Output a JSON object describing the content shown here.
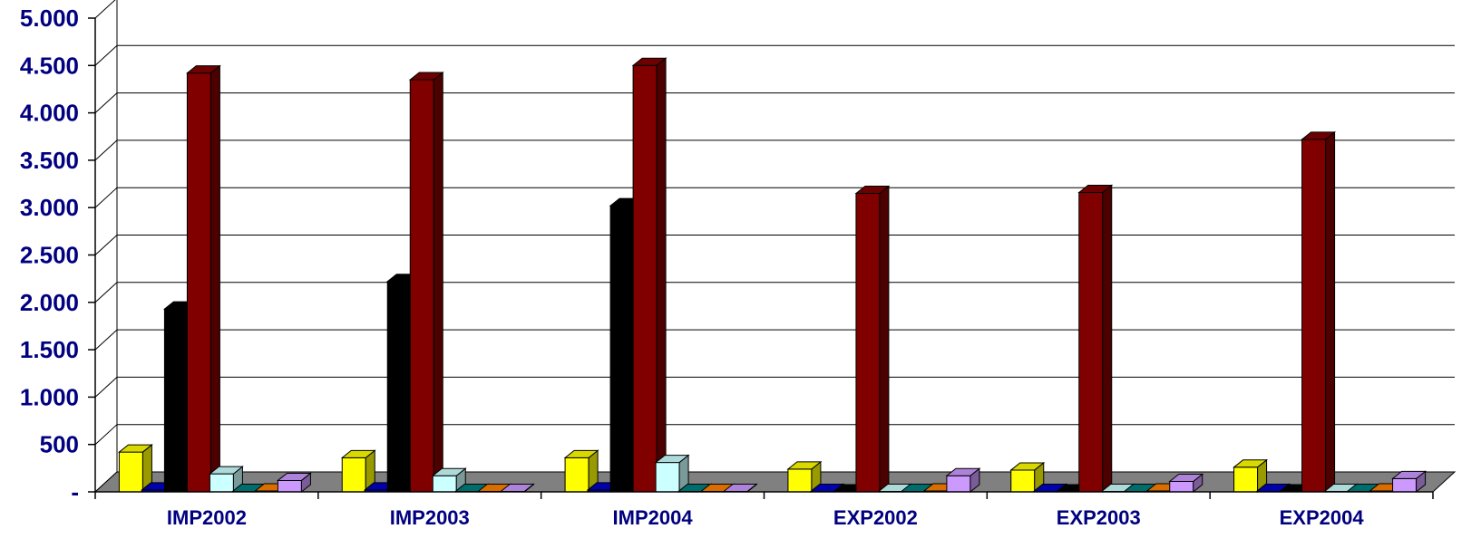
{
  "chart_data": {
    "type": "bar",
    "variant": "3d-clustered-column",
    "title": "",
    "xlabel": "",
    "ylabel": "",
    "categories": [
      "IMP2002",
      "IMP2003",
      "IMP2004",
      "EXP2002",
      "EXP2003",
      "EXP2004"
    ],
    "y_tick_labels": [
      "-",
      "500",
      "1.000",
      "1.500",
      "2.000",
      "2.500",
      "3.000",
      "3.500",
      "4.000",
      "4.500",
      "5.000"
    ],
    "ylim": [
      0,
      5000
    ],
    "grid": true,
    "legend": "none",
    "series": [
      {
        "color": "#FFFF00",
        "values": [
          420,
          360,
          360,
          240,
          230,
          260
        ]
      },
      {
        "color": "#0000CC",
        "values": [
          20,
          20,
          20,
          5,
          5,
          5
        ]
      },
      {
        "color": "#000000",
        "values": [
          1930,
          2220,
          3020,
          0,
          0,
          0
        ]
      },
      {
        "color": "#800000",
        "values": [
          4420,
          4350,
          4500,
          3150,
          3160,
          3720
        ]
      },
      {
        "color": "#CCFFFF",
        "values": [
          190,
          170,
          310,
          5,
          5,
          5
        ]
      },
      {
        "color": "#008080",
        "values": [
          5,
          5,
          5,
          5,
          5,
          5
        ]
      },
      {
        "color": "#FF8000",
        "values": [
          10,
          5,
          5,
          10,
          10,
          10
        ]
      },
      {
        "color": "#CC99FF",
        "values": [
          120,
          5,
          5,
          170,
          110,
          140
        ]
      }
    ],
    "colors": {
      "axis_text": "#000080",
      "gridline": "#000000",
      "floor": "#808080"
    }
  }
}
